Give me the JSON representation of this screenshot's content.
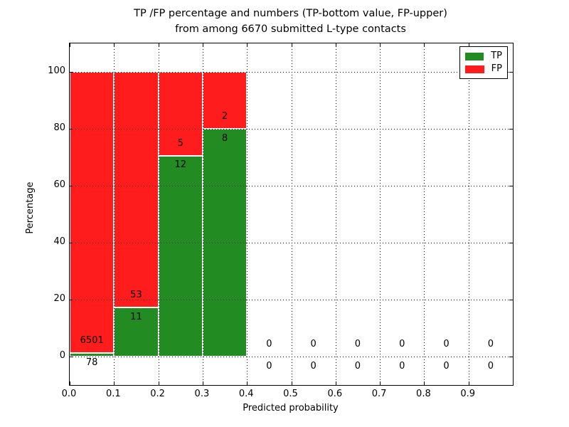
{
  "title": {
    "line1": "TP /FP percentage and numbers (TP-bottom value, FP-upper)",
    "line2": "from among 6670 submitted L-type contacts"
  },
  "axes": {
    "xlabel": "Predicted probability",
    "ylabel": "Percentage",
    "xlim": [
      0,
      1
    ],
    "ylim": [
      -10,
      110
    ],
    "xtick_labels": [
      "0.0",
      "0.1",
      "0.2",
      "0.3",
      "0.4",
      "0.5",
      "0.6",
      "0.7",
      "0.8",
      "0.9"
    ],
    "xtick_values": [
      0,
      0.1,
      0.2,
      0.3,
      0.4,
      0.5,
      0.6,
      0.7,
      0.8,
      0.9
    ],
    "ytick_labels": [
      "0",
      "20",
      "40",
      "60",
      "80",
      "100"
    ],
    "ytick_values": [
      0,
      20,
      40,
      60,
      80,
      100
    ],
    "grid_style": "dotted"
  },
  "legend": {
    "items": [
      {
        "label": "TP",
        "color": "#228b22"
      },
      {
        "label": "FP",
        "color": "#ff1c1c"
      }
    ]
  },
  "chart_data": {
    "type": "bar",
    "stacked": true,
    "title": "TP /FP percentage and numbers (TP-bottom value, FP-upper) from among 6670 submitted L-type contacts",
    "xlabel": "Predicted probability",
    "ylabel": "Percentage",
    "xlim": [
      0,
      1
    ],
    "ylim": [
      -10,
      110
    ],
    "grid": true,
    "legend_position": "upper right",
    "total_contacts": 6670,
    "bin_width": 0.1,
    "bin_starts": [
      0.0,
      0.1,
      0.2,
      0.3,
      0.4,
      0.5,
      0.6,
      0.7,
      0.8,
      0.9
    ],
    "bin_centers": [
      0.05,
      0.15,
      0.25,
      0.35,
      0.45,
      0.55,
      0.65,
      0.75,
      0.85,
      0.95
    ],
    "series": [
      {
        "name": "TP",
        "color": "#228b22",
        "counts": [
          78,
          11,
          12,
          8,
          0,
          0,
          0,
          0,
          0,
          0
        ],
        "percent_heights": [
          1.19,
          17.19,
          70.59,
          80.0,
          0,
          0,
          0,
          0,
          0,
          0
        ]
      },
      {
        "name": "FP",
        "color": "#ff1c1c",
        "counts": [
          6501,
          53,
          5,
          2,
          0,
          0,
          0,
          0,
          0,
          0
        ],
        "percent_heights": [
          98.81,
          82.81,
          29.41,
          20.0,
          0,
          0,
          0,
          0,
          0,
          0
        ]
      }
    ]
  }
}
